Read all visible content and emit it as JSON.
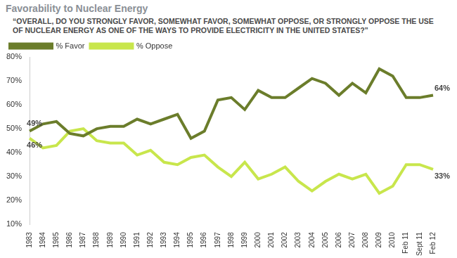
{
  "chart_data": {
    "type": "line",
    "title": "Favorability to Nuclear Energy",
    "subtitle": "“OVERALL, DO YOU STRONGLY FAVOR, SOMEWHAT FAVOR, SOMEWHAT OPPOSE, OR STRONGLY OPPOSE THE USE OF NUCLEAR ENERGY AS ONE OF THE WAYS TO PROVIDE ELECTRICITY IN THE UNITED STATES?”",
    "categories": [
      "1983",
      "1984",
      "1985",
      "1986",
      "1987",
      "1988",
      "1989",
      "1990",
      "1991",
      "1992",
      "1993",
      "1994",
      "1995",
      "1996",
      "1997",
      "1998",
      "1999",
      "2000",
      "2001",
      "2002",
      "2003",
      "2004",
      "2005",
      "2006",
      "2007",
      "2008",
      "2009",
      "2010",
      "Feb 11",
      "Sept 11",
      "Feb 12"
    ],
    "series": [
      {
        "name": "% Favor",
        "color": "#6b7d2b",
        "values": [
          49,
          52,
          53,
          48,
          47,
          50,
          51,
          51,
          54,
          52,
          54,
          56,
          46,
          49,
          62,
          63,
          58,
          66,
          63,
          63,
          67,
          71,
          69,
          64,
          69,
          65,
          75,
          72,
          63,
          63,
          64
        ],
        "value_labels": [
          "49%",
          null,
          null,
          null,
          null,
          null,
          null,
          null,
          null,
          null,
          null,
          null,
          null,
          null,
          null,
          null,
          null,
          null,
          null,
          null,
          null,
          null,
          null,
          null,
          null,
          null,
          null,
          null,
          null,
          null,
          "64%"
        ]
      },
      {
        "name": "% Oppose",
        "color": "#c8e64c",
        "values": [
          46,
          42,
          43,
          49,
          50,
          45,
          44,
          44,
          39,
          41,
          36,
          35,
          38,
          39,
          34,
          30,
          36,
          29,
          31,
          34,
          28,
          24,
          28,
          31,
          29,
          31,
          23,
          26,
          35,
          35,
          33
        ],
        "value_labels": [
          "46%",
          null,
          null,
          null,
          null,
          null,
          null,
          null,
          null,
          null,
          null,
          null,
          null,
          null,
          null,
          null,
          null,
          null,
          null,
          null,
          null,
          null,
          null,
          null,
          null,
          null,
          null,
          null,
          null,
          null,
          "33%"
        ]
      }
    ],
    "ylim": [
      10,
      80
    ],
    "yticks": [
      {
        "value": 10,
        "label": "10%"
      },
      {
        "value": 20,
        "label": "20%"
      },
      {
        "value": 30,
        "label": "30%"
      },
      {
        "value": 40,
        "label": "40%"
      },
      {
        "value": 50,
        "label": "50%"
      },
      {
        "value": 60,
        "label": "60%"
      },
      {
        "value": 70,
        "label": "70%"
      },
      {
        "value": 80,
        "label": "80%"
      }
    ],
    "grid": false,
    "legend": "top-left"
  }
}
